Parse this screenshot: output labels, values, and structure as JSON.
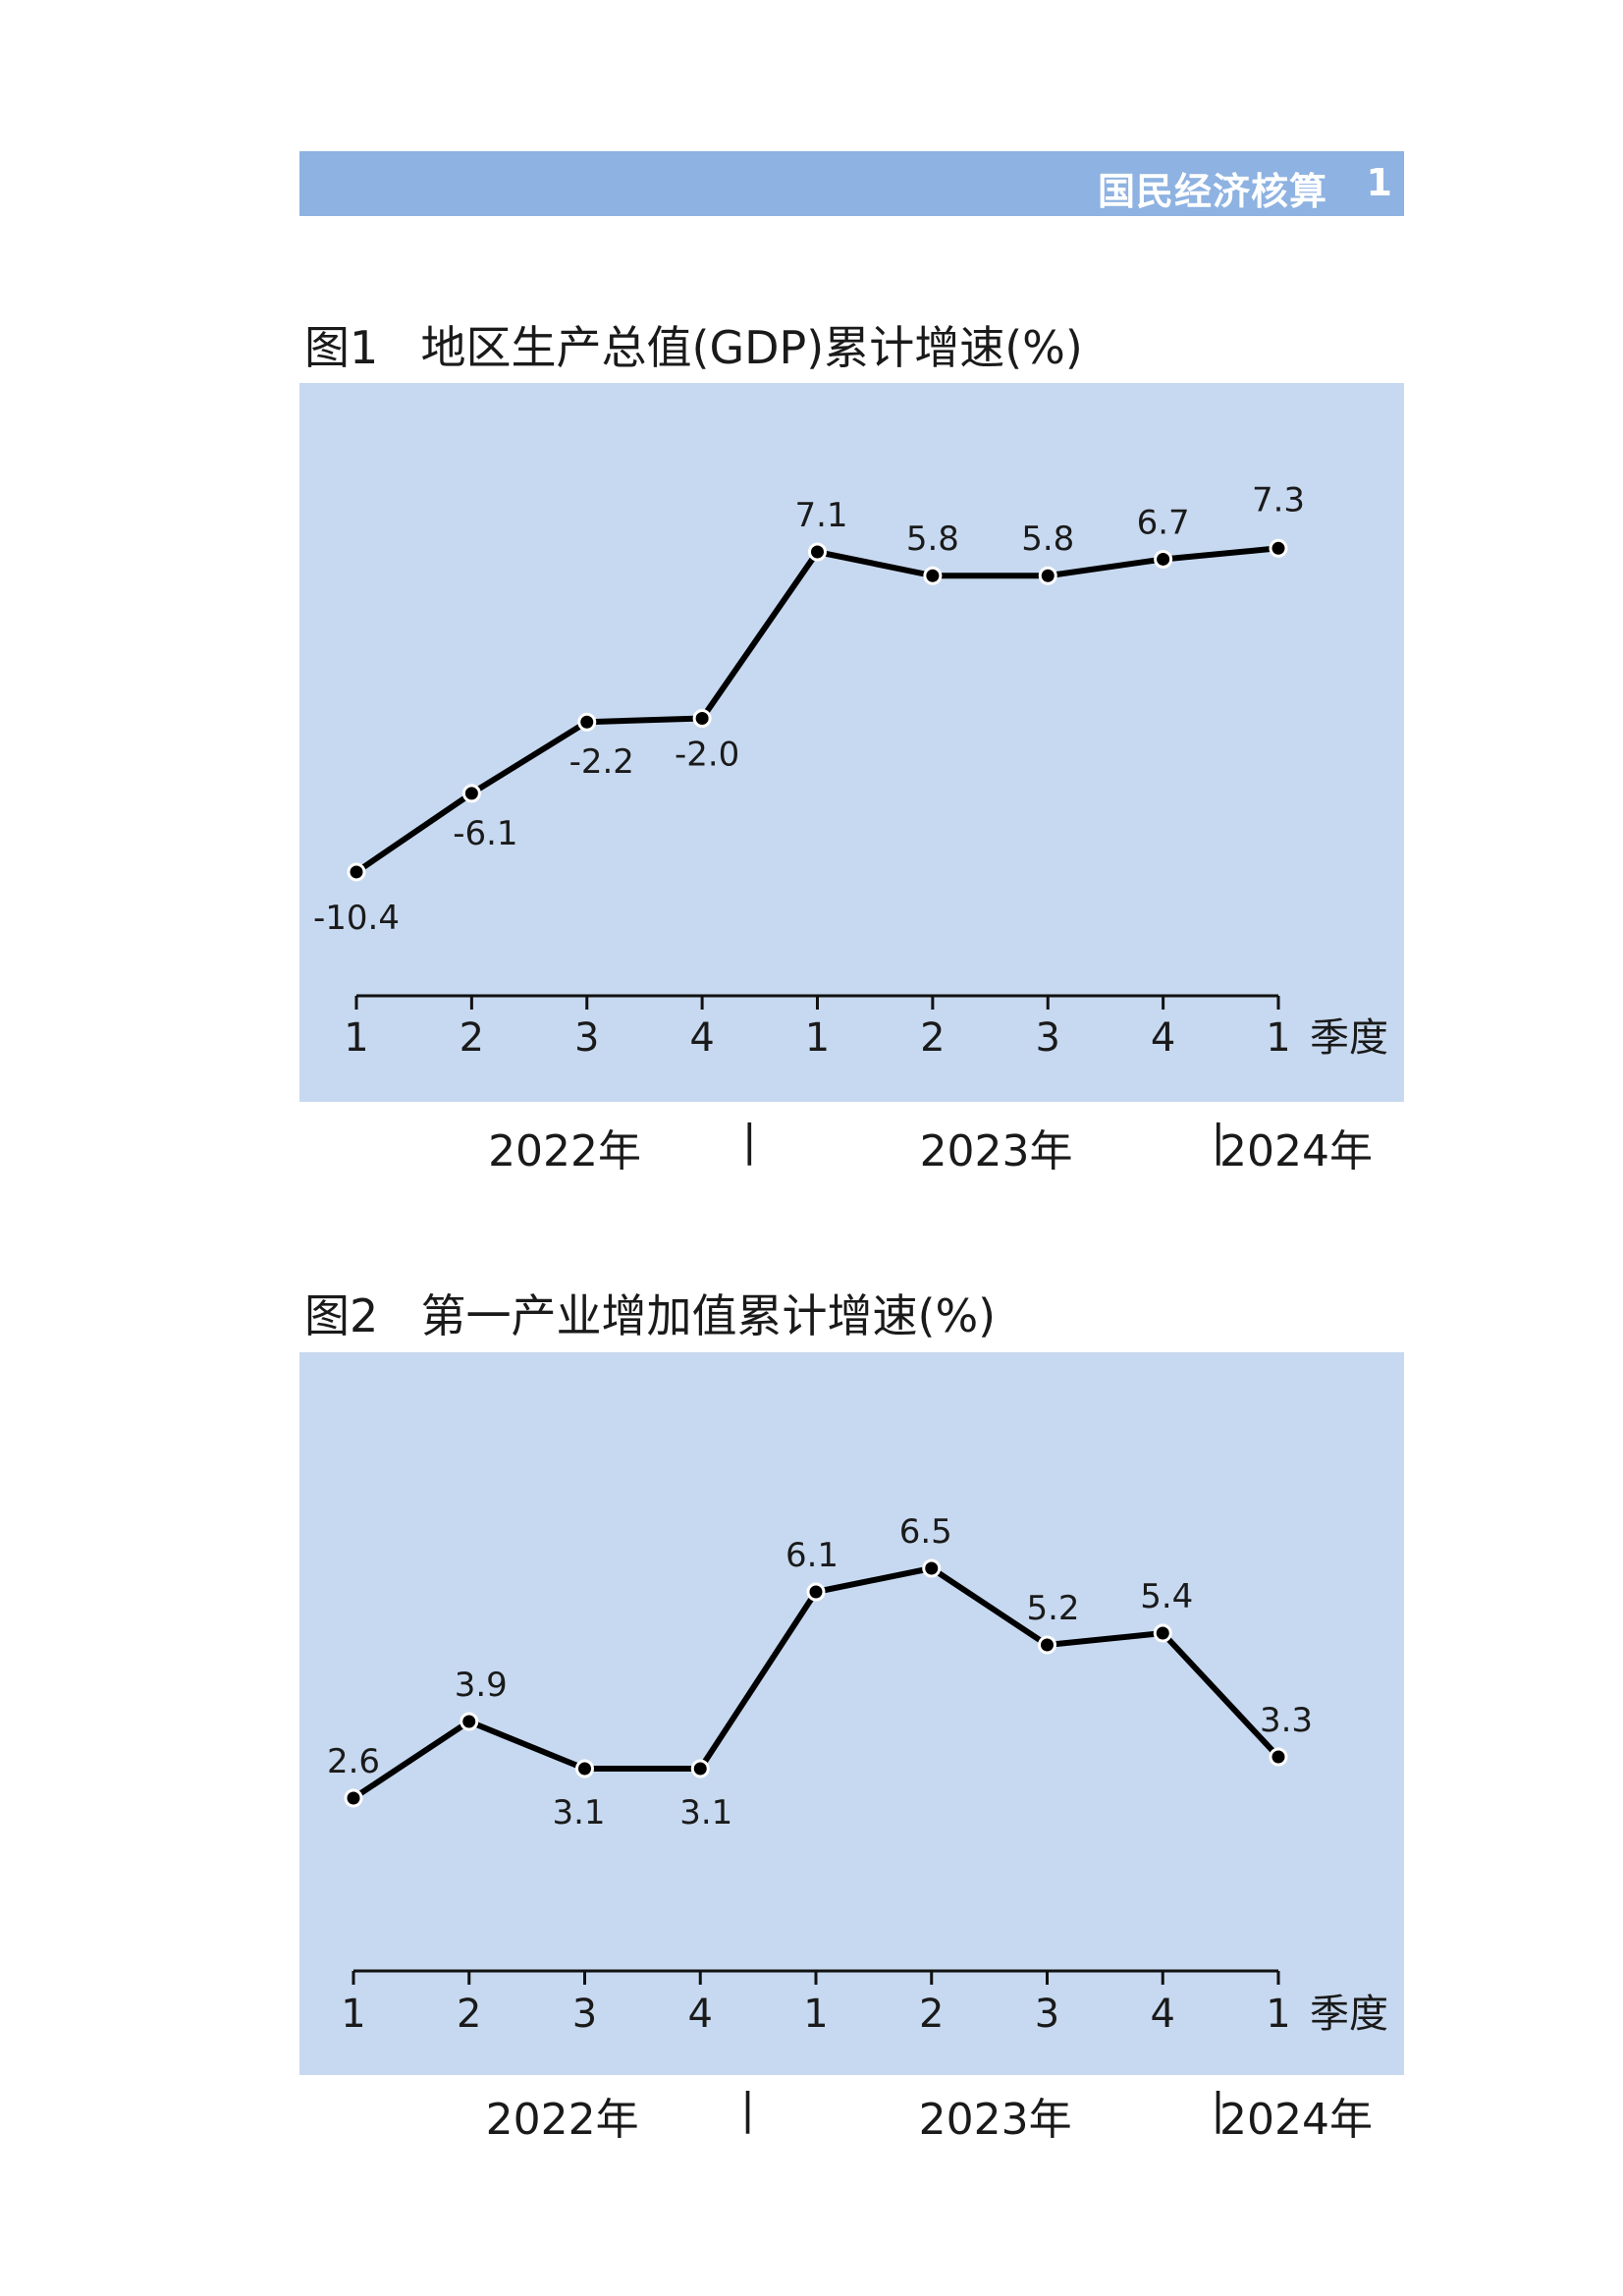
{
  "header": {
    "section_title": "国民经济核算",
    "page_number": "1"
  },
  "chart_data": [
    {
      "type": "line",
      "figure_label": "图1",
      "title": "地区生产总值(GDP)累计增速(%)",
      "categories": [
        "1",
        "2",
        "3",
        "4",
        "1",
        "2",
        "3",
        "4",
        "1"
      ],
      "x_unit_label": "季度",
      "years": [
        "2022年",
        "2023年",
        "2024年"
      ],
      "year_separator": "|",
      "series": [
        {
          "values": [
            -10.4,
            -6.1,
            -2.2,
            -2.0,
            7.1,
            5.8,
            5.8,
            6.7,
            7.3
          ]
        }
      ],
      "data_labels": [
        "-10.4",
        "-6.1",
        "-2.2",
        "-2.0",
        "7.1",
        "5.8",
        "5.8",
        "6.7",
        "7.3"
      ],
      "ylim": [
        -14,
        10
      ],
      "grid": false,
      "colors": {
        "panel": "#c7d9f0",
        "line": "#000000",
        "marker_fill": "#000000",
        "marker_stroke": "#ffffff"
      }
    },
    {
      "type": "line",
      "figure_label": "图2",
      "title": "第一产业增加值累计增速(%)",
      "categories": [
        "1",
        "2",
        "3",
        "4",
        "1",
        "2",
        "3",
        "4",
        "1"
      ],
      "x_unit_label": "季度",
      "years": [
        "2022年",
        "2023年",
        "2024年"
      ],
      "year_separator": "|",
      "series": [
        {
          "values": [
            2.6,
            3.9,
            3.1,
            3.1,
            6.1,
            6.5,
            5.2,
            5.4,
            3.3
          ]
        }
      ],
      "data_labels": [
        "2.6",
        "3.9",
        "3.1",
        "3.1",
        "6.1",
        "6.5",
        "5.2",
        "5.4",
        "3.3"
      ],
      "ylim": [
        -0.5,
        8.2
      ],
      "grid": false,
      "colors": {
        "panel": "#c7d9f0",
        "line": "#000000",
        "marker_fill": "#000000",
        "marker_stroke": "#ffffff"
      }
    }
  ]
}
